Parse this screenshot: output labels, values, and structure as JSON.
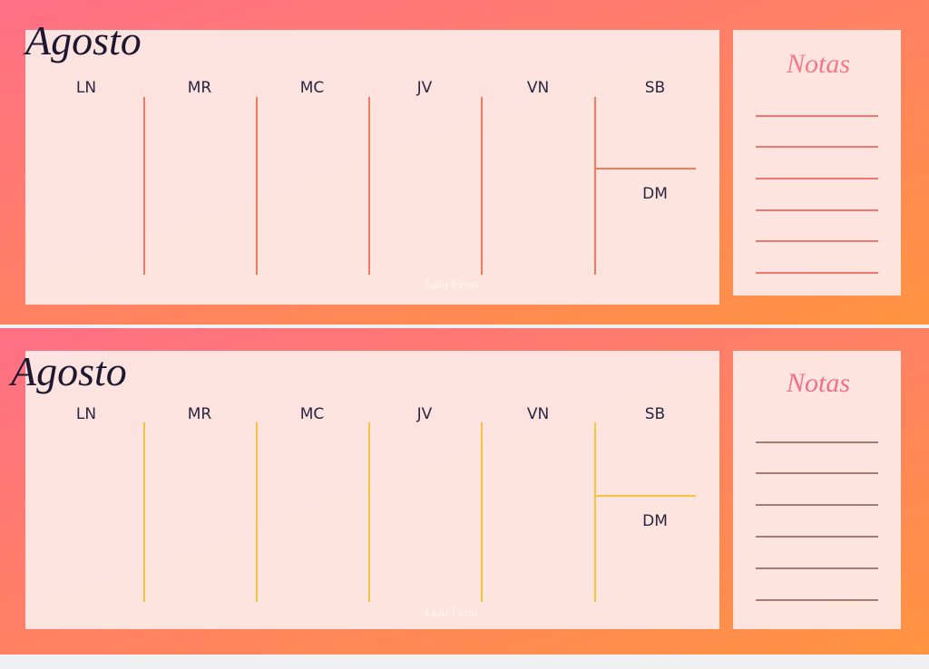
{
  "planners": [
    {
      "title": "Agosto",
      "days": [
        "LN",
        "MR",
        "MC",
        "JV",
        "VN",
        "SB"
      ],
      "weekend_day": "DM",
      "notes_title": "Notas",
      "watermark": "Lulu Fems"
    },
    {
      "title": "Agosto",
      "days": [
        "LN",
        "MR",
        "MC",
        "JV",
        "VN",
        "SB"
      ],
      "weekend_day": "DM",
      "notes_title": "Notas",
      "watermark": "Lulu Fems"
    }
  ]
}
